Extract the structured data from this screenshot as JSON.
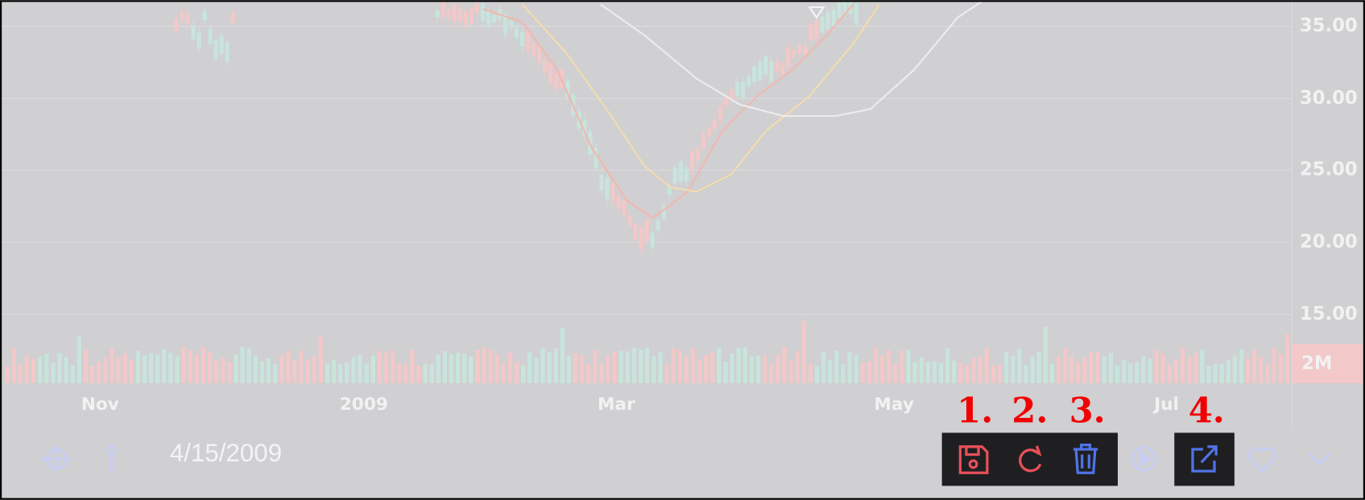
{
  "axis": {
    "y_labels": [
      "35.00",
      "30.00",
      "25.00",
      "20.00",
      "15.00"
    ],
    "volume_label": "2M",
    "x_labels": [
      "Nov",
      "2009",
      "Mar",
      "May",
      "Jul"
    ]
  },
  "toolbar": {
    "date": "4/15/2009"
  },
  "annotations": [
    "1.",
    "2.",
    "3.",
    "4."
  ]
}
